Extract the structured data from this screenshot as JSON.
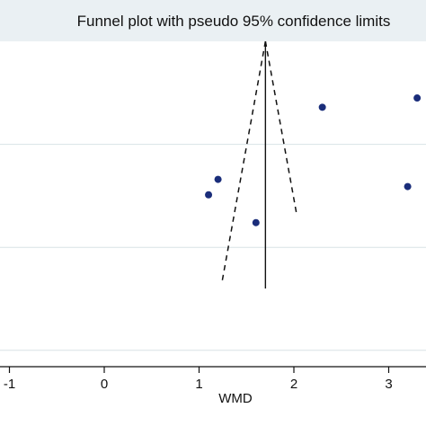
{
  "chart_data": {
    "type": "scatter",
    "title": "Funnel plot with pseudo 95% confidence limits",
    "xlabel": "WMD",
    "ylabel": "",
    "xlim": [
      -1.05,
      3.5
    ],
    "ylim": [
      0,
      0.4
    ],
    "x_ticks": [
      -1,
      0,
      1,
      2,
      3
    ],
    "x_tick_labels": [
      "-1",
      "0",
      "1",
      "2",
      "3"
    ],
    "y_reversed": true,
    "y_gridlines": [
      0.1,
      0.2,
      0.3
    ],
    "pooled_estimate": 1.7,
    "ci_multiplier": 1.96,
    "ci_lower_se_max": 0.235,
    "ci_upper_se_max": 0.168,
    "points": [
      {
        "x": 3.3,
        "y": 0.055
      },
      {
        "x": 2.3,
        "y": 0.064
      },
      {
        "x": 1.2,
        "y": 0.134
      },
      {
        "x": 1.1,
        "y": 0.149
      },
      {
        "x": 3.2,
        "y": 0.141
      },
      {
        "x": 1.6,
        "y": 0.176
      }
    ],
    "grid": true,
    "colors": {
      "points": "#1a2d7a",
      "lines": "#111111",
      "title_band": "#eaf0f3",
      "grid": "#d8e2e6"
    }
  }
}
